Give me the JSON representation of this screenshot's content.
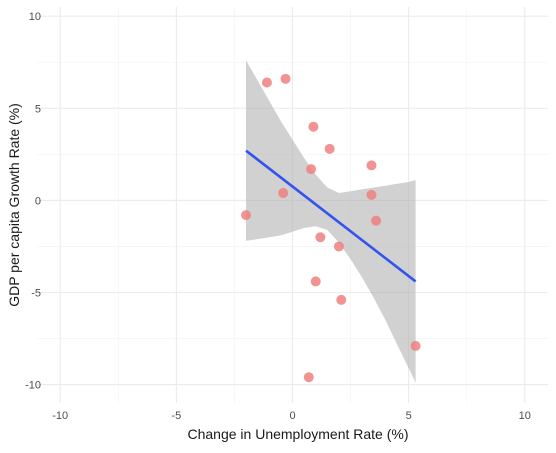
{
  "chart_data": {
    "type": "scatter",
    "title": "",
    "xlabel": "Change in Unemployment Rate (%)",
    "ylabel": "GDP per capita Growth Rate (%)",
    "xlim": [
      -11,
      11
    ],
    "ylim": [
      -11,
      10.5
    ],
    "x_ticks": [
      -10,
      -5,
      0,
      5,
      10
    ],
    "y_ticks": [
      -10,
      -5,
      0,
      5,
      10
    ],
    "x_tick_labels": [
      "-10",
      "-5",
      "0",
      "5",
      "10"
    ],
    "y_tick_labels": [
      "-10",
      "-5",
      "0",
      "5",
      "10"
    ],
    "grid": true,
    "legend": "none",
    "theme": "minimal",
    "series": [
      {
        "points": [
          {
            "x": -1.1,
            "y": 6.4
          },
          {
            "x": -0.3,
            "y": 6.6
          },
          {
            "x": 0.9,
            "y": 4.0
          },
          {
            "x": 1.6,
            "y": 2.8
          },
          {
            "x": 3.4,
            "y": 1.9
          },
          {
            "x": 0.8,
            "y": 1.7
          },
          {
            "x": -0.4,
            "y": 0.4
          },
          {
            "x": 3.4,
            "y": 0.3
          },
          {
            "x": -2.0,
            "y": -0.8
          },
          {
            "x": 3.6,
            "y": -1.1
          },
          {
            "x": 1.2,
            "y": -2.0
          },
          {
            "x": 2.0,
            "y": -2.5
          },
          {
            "x": 1.0,
            "y": -4.4
          },
          {
            "x": 2.1,
            "y": -5.4
          },
          {
            "x": 5.3,
            "y": -7.9
          },
          {
            "x": 0.7,
            "y": -9.6
          }
        ],
        "color": "#f08080"
      }
    ],
    "fit_line": {
      "method": "linear",
      "x": [
        -2.0,
        5.3
      ],
      "y": [
        2.7,
        -4.4
      ],
      "color": "#3355ee"
    },
    "confidence_band": {
      "color": "#b3b3b3",
      "x": [
        -2.0,
        -1.5,
        -1.0,
        -0.5,
        0.0,
        0.5,
        1.0,
        1.5,
        2.0,
        2.5,
        3.0,
        3.5,
        4.0,
        4.5,
        5.0,
        5.3
      ],
      "lower": [
        -2.2,
        -2.1,
        -2.0,
        -1.9,
        -1.7,
        -1.5,
        -1.4,
        -1.6,
        -2.3,
        -3.2,
        -4.2,
        -5.3,
        -6.5,
        -7.8,
        -9.1,
        -9.9
      ],
      "upper": [
        7.6,
        6.5,
        5.4,
        4.3,
        3.3,
        2.3,
        1.4,
        0.7,
        0.4,
        0.5,
        0.6,
        0.7,
        0.8,
        0.9,
        1.0,
        1.1
      ]
    }
  }
}
